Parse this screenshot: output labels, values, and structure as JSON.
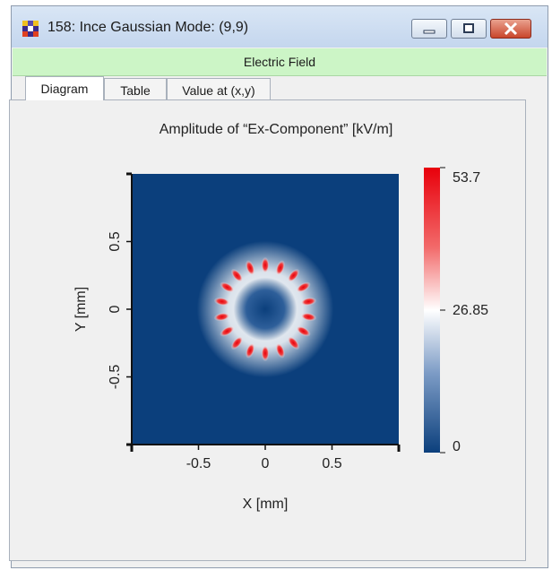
{
  "window": {
    "title": "158: Ince Gaussian Mode: (9,9)",
    "buttons": {
      "minimize_icon": "minimize-icon",
      "maximize_icon": "maximize-icon",
      "close_icon": "close-icon"
    }
  },
  "header": {
    "title": "Electric Field"
  },
  "tabs": [
    {
      "label": "Diagram",
      "active": true
    },
    {
      "label": "Table",
      "active": false
    },
    {
      "label": "Value at (x,y)",
      "active": false
    }
  ],
  "chart_data": {
    "type": "heatmap",
    "title": "Amplitude of “Ex-Component”  [kV/m]",
    "xlabel": "X [mm]",
    "ylabel": "Y [mm]",
    "xlim": [
      -1,
      1
    ],
    "ylim": [
      -1,
      1
    ],
    "xticks": [
      -0.5,
      0,
      0.5
    ],
    "yticks": [
      -0.5,
      0,
      0.5
    ],
    "colorbar": {
      "min": 0,
      "max": 53.7,
      "tick_labels": [
        "53.7",
        "26.85",
        "0"
      ],
      "colors": [
        "#0b3f7c",
        "#ffffff",
        "#e8000b"
      ]
    },
    "pattern": {
      "shape": "ring of lobes",
      "lobes": 18,
      "ring_radius_mm": 0.33,
      "peak": 53.7
    }
  },
  "colors": {
    "header": "#ccf5c6",
    "background": "#f0f0f0",
    "plot_low": "#0b3f7c"
  }
}
